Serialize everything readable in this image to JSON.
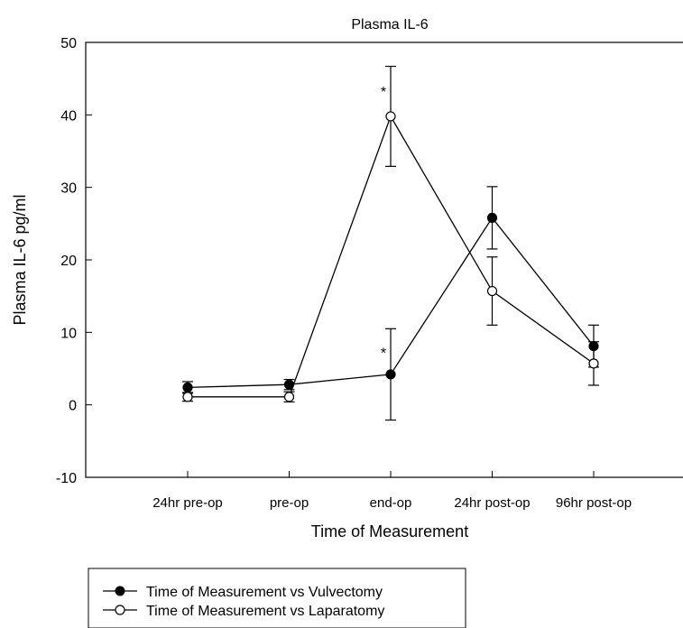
{
  "chart_data": {
    "type": "line",
    "title": "Plasma IL-6",
    "xlabel": "Time of Measurement",
    "ylabel": "Plasma IL-6 pg/ml",
    "categories": [
      "24hr pre-op",
      "pre-op",
      "end-op",
      "24hr post-op",
      "96hr post-op"
    ],
    "ylim": [
      -10,
      50
    ],
    "yticks": [
      -10,
      0,
      10,
      20,
      30,
      40,
      50
    ],
    "ytick_labels": [
      "-10",
      "0",
      "10",
      "20",
      "30",
      "40",
      "50"
    ],
    "grid": false,
    "legend_position": "bottom-left",
    "series": [
      {
        "name": "Time of Measurement vs Vulvectomy",
        "marker": "filled-circle",
        "color": "#000000",
        "values": [
          2.4,
          2.8,
          4.2,
          25.8,
          8.1
        ],
        "error": [
          0.8,
          0.7,
          6.3,
          4.3,
          2.9
        ]
      },
      {
        "name": "Time of Measurement vs Laparatomy",
        "marker": "open-circle",
        "color": "#000000",
        "values": [
          1.1,
          1.1,
          39.8,
          15.7,
          5.7
        ],
        "error": [
          0.6,
          0.7,
          6.9,
          4.7,
          3.0
        ]
      }
    ],
    "annotations": [
      {
        "text": "*",
        "category": "end-op",
        "y": 43.5
      },
      {
        "text": "*",
        "category": "end-op",
        "y": 7.5
      }
    ]
  }
}
